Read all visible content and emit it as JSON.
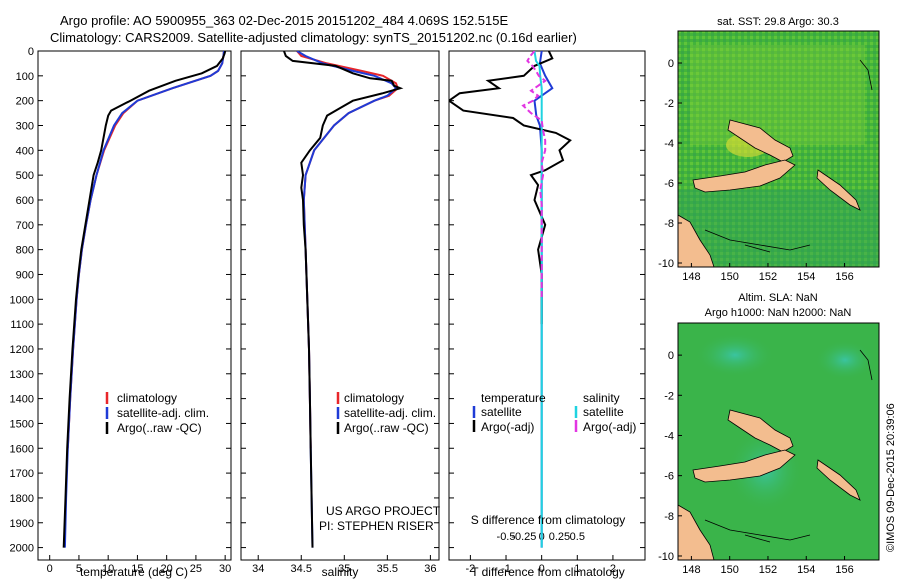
{
  "header": {
    "line1": "Argo profile: AO 5900955_363 02-Dec-2015 20151202_484 4.069S 152.515E",
    "line2": "Climatology: CARS2009. Satellite-adjusted climatology: synTS_20151202.nc (0.16d earlier)"
  },
  "colors": {
    "climatology": "#e8262a",
    "satellite": "#1f3bd6",
    "argo": "#000000",
    "sal_satellite": "#1fd3e0",
    "sal_argo": "#e236e2"
  },
  "chart_data": [
    {
      "id": "temperature",
      "type": "line",
      "xlabel": "temperature (deg C)",
      "ylabel": "",
      "xlim": [
        -2,
        31
      ],
      "ylim": [
        2050,
        0
      ],
      "xticks": [
        0,
        5,
        10,
        15,
        20,
        25,
        30
      ],
      "yticks": [
        0,
        100,
        200,
        300,
        400,
        500,
        600,
        700,
        800,
        900,
        1000,
        1100,
        1200,
        1300,
        1400,
        1500,
        1600,
        1700,
        1800,
        1900,
        2000
      ],
      "legend": {
        "position": "bottom-right",
        "items": [
          "climatology",
          "satellite-adj. clim.",
          "Argo(..raw -QC)"
        ]
      },
      "series": [
        {
          "name": "climatology",
          "color": "#e8262a",
          "depth": [
            0,
            20,
            50,
            80,
            100,
            150,
            200,
            250,
            300,
            400,
            500,
            600,
            700,
            800,
            900,
            1000,
            1200,
            1400,
            1600
          ],
          "values": [
            29.8,
            29.7,
            29.5,
            28.8,
            27.5,
            21.0,
            15.0,
            12.6,
            11.2,
            9.3,
            8.0,
            7.0,
            6.2,
            5.5,
            5.0,
            4.6,
            4.0,
            3.5,
            3.1
          ]
        },
        {
          "name": "satellite-adj. clim.",
          "color": "#1f3bd6",
          "depth": [
            0,
            20,
            50,
            80,
            100,
            150,
            200,
            250,
            300,
            400,
            500,
            600,
            700,
            800,
            900,
            1000,
            1200,
            1400,
            1600,
            1800,
            2000
          ],
          "values": [
            29.8,
            29.7,
            29.5,
            28.8,
            27.5,
            21.0,
            15.0,
            12.4,
            11.0,
            9.2,
            8.0,
            7.0,
            6.2,
            5.5,
            5.0,
            4.6,
            4.0,
            3.5,
            3.1,
            2.8,
            2.6
          ]
        },
        {
          "name": "Argo(..raw -QC)",
          "color": "#000000",
          "depth": [
            0,
            10,
            30,
            60,
            90,
            120,
            160,
            200,
            240,
            260,
            300,
            350,
            400,
            450,
            500,
            600,
            700,
            800,
            900,
            1000,
            1200,
            1400,
            1600,
            1800,
            2000
          ],
          "values": [
            30.0,
            29.9,
            29.6,
            28.6,
            26.0,
            21.5,
            17.0,
            13.8,
            10.5,
            10.0,
            9.6,
            9.2,
            8.8,
            8.2,
            7.5,
            6.8,
            6.1,
            5.4,
            4.9,
            4.5,
            3.9,
            3.4,
            3.0,
            2.7,
            2.4
          ]
        }
      ]
    },
    {
      "id": "salinity",
      "type": "line",
      "xlabel": "salinity",
      "xlim": [
        33.8,
        36.1
      ],
      "ylim": [
        2050,
        0
      ],
      "xticks": [
        34,
        34.5,
        35,
        35.5,
        36
      ],
      "legend": {
        "position": "bottom-right",
        "items": [
          "climatology",
          "satellite-adj. clim.",
          "Argo(..raw -QC)"
        ]
      },
      "credit": [
        "US ARGO PROJECT",
        "PI: STEPHEN RISER"
      ],
      "series": [
        {
          "name": "climatology",
          "color": "#e8262a",
          "depth": [
            0,
            20,
            50,
            80,
            100,
            130,
            150,
            180,
            200,
            250,
            300,
            400,
            500,
            600,
            700,
            800,
            1000,
            1200,
            1400,
            1600
          ],
          "values": [
            34.45,
            34.5,
            34.8,
            35.2,
            35.45,
            35.6,
            35.62,
            35.52,
            35.35,
            35.05,
            34.88,
            34.65,
            34.55,
            34.53,
            34.54,
            34.55,
            34.57,
            34.59,
            34.6,
            34.61
          ]
        },
        {
          "name": "satellite-adj. clim.",
          "color": "#1f3bd6",
          "depth": [
            0,
            20,
            50,
            80,
            100,
            130,
            150,
            180,
            200,
            250,
            300,
            400,
            500,
            600,
            700,
            800,
            1000,
            1200,
            1400,
            1600,
            1800,
            2000
          ],
          "values": [
            34.45,
            34.55,
            34.75,
            35.1,
            35.35,
            35.55,
            35.6,
            35.5,
            35.35,
            35.05,
            34.88,
            34.65,
            34.55,
            34.53,
            34.54,
            34.55,
            34.57,
            34.59,
            34.6,
            34.61,
            34.62,
            34.63
          ]
        },
        {
          "name": "Argo(..raw -QC)",
          "color": "#000000",
          "depth": [
            0,
            20,
            40,
            60,
            90,
            110,
            120,
            140,
            150,
            170,
            200,
            230,
            260,
            300,
            350,
            400,
            450,
            500,
            550,
            600,
            700,
            800,
            1000,
            1200,
            1400,
            1600,
            1800,
            2000
          ],
          "values": [
            34.3,
            34.32,
            34.4,
            34.9,
            35.1,
            35.3,
            35.55,
            35.58,
            35.65,
            35.45,
            35.1,
            34.95,
            34.8,
            34.75,
            34.72,
            34.6,
            34.5,
            34.52,
            34.5,
            34.52,
            34.53,
            34.55,
            34.57,
            34.59,
            34.6,
            34.61,
            34.62,
            34.63
          ]
        }
      ]
    },
    {
      "id": "difference",
      "type": "line",
      "xlabel": "T difference from climatology",
      "top_xlabel": "S difference from climatology",
      "xlim": [
        -2.6,
        2.9
      ],
      "ylim": [
        2050,
        0
      ],
      "xticks": [
        -2,
        -1,
        0,
        1,
        2
      ],
      "top_ticks": [
        -0.5,
        -0.25,
        0,
        0.25,
        0.5
      ],
      "legend": {
        "position": "bottom",
        "items": [
          "temperature",
          "salinity",
          "satellite",
          "satellite",
          "Argo(-adj)",
          "Argo(-adj)"
        ]
      },
      "series": [
        {
          "name": "T satellite",
          "color": "#1f3bd6",
          "depth": [
            0,
            50,
            100,
            150,
            200,
            260,
            300,
            400,
            500,
            600,
            700,
            900,
            1200,
            1600,
            2000
          ],
          "values": [
            0.0,
            -0.05,
            0.1,
            0.3,
            -0.2,
            -0.15,
            -0.05,
            0.0,
            0.0,
            0.0,
            0.0,
            0.0,
            0.0,
            0.0,
            0.0
          ]
        },
        {
          "name": "T Argo(-adj)",
          "color": "#000000",
          "depth": [
            0,
            30,
            60,
            100,
            120,
            150,
            170,
            200,
            240,
            270,
            300,
            330,
            360,
            400,
            440,
            480,
            500,
            540,
            600,
            700,
            800,
            900,
            1000,
            1100
          ],
          "values": [
            0.2,
            0.3,
            -0.2,
            -0.5,
            -1.5,
            -1.2,
            -2.3,
            -2.6,
            -2.2,
            -0.8,
            -0.5,
            0.4,
            0.8,
            0.5,
            0.6,
            0.1,
            -0.3,
            -0.1,
            -0.2,
            0.1,
            -0.1,
            0.0,
            0.0,
            0.0
          ]
        },
        {
          "name": "S satellite",
          "color": "#1fd3e0",
          "depth": [
            0,
            40,
            60,
            100,
            150,
            200,
            300,
            400,
            600,
            800,
            1000,
            1400,
            2000
          ],
          "values": [
            -0.1,
            -0.08,
            -0.03,
            -0.02,
            0.0,
            0.0,
            0.0,
            0.0,
            0.0,
            0.0,
            0.0,
            0.0,
            0.0
          ]
        },
        {
          "name": "S Argo(-adj)",
          "color": "#e236e2",
          "depth": [
            0,
            20,
            40,
            60,
            80,
            100,
            120,
            140,
            160,
            180,
            200,
            220,
            250,
            280,
            320,
            360,
            400,
            450,
            500,
            560,
            620,
            700,
            800,
            900,
            1000
          ],
          "values": [
            -0.1,
            -0.16,
            -0.2,
            -0.13,
            -0.08,
            -0.04,
            0.05,
            -0.05,
            -0.15,
            -0.05,
            -0.12,
            -0.26,
            -0.15,
            0.0,
            0.02,
            0.05,
            0.05,
            0.0,
            0.02,
            -0.02,
            0.0,
            0.0,
            0.0,
            0.0,
            0.0
          ]
        }
      ]
    },
    {
      "id": "sst_map",
      "type": "heatmap",
      "title": "sat. SST: 29.8 Argo: 30.3",
      "xlim": [
        147.3,
        157.8
      ],
      "ylim": [
        -10.2,
        1.6
      ],
      "xticks": [
        148,
        150,
        152,
        154,
        156
      ],
      "yticks": [
        0,
        -2,
        -4,
        -6,
        -8,
        -10
      ]
    },
    {
      "id": "sla_map",
      "type": "heatmap",
      "title_lines": [
        "Altim. SLA: NaN",
        "Argo h1000: NaN h2000: NaN"
      ],
      "xlim": [
        147.3,
        157.8
      ],
      "ylim": [
        -10.2,
        1.6
      ],
      "xticks": [
        148,
        150,
        152,
        154,
        156
      ],
      "yticks": [
        0,
        -2,
        -4,
        -6,
        -8,
        -10
      ]
    }
  ],
  "diff_legend": {
    "temp_header": "temperature",
    "sal_header": "salinity",
    "temp_sat": "satellite",
    "sal_sat": "satellite",
    "temp_argo": "Argo(-adj)",
    "sal_argo": "Argo(-adj)"
  },
  "side_stamp": "©IMOS 09-Dec-2015 20:39:06"
}
